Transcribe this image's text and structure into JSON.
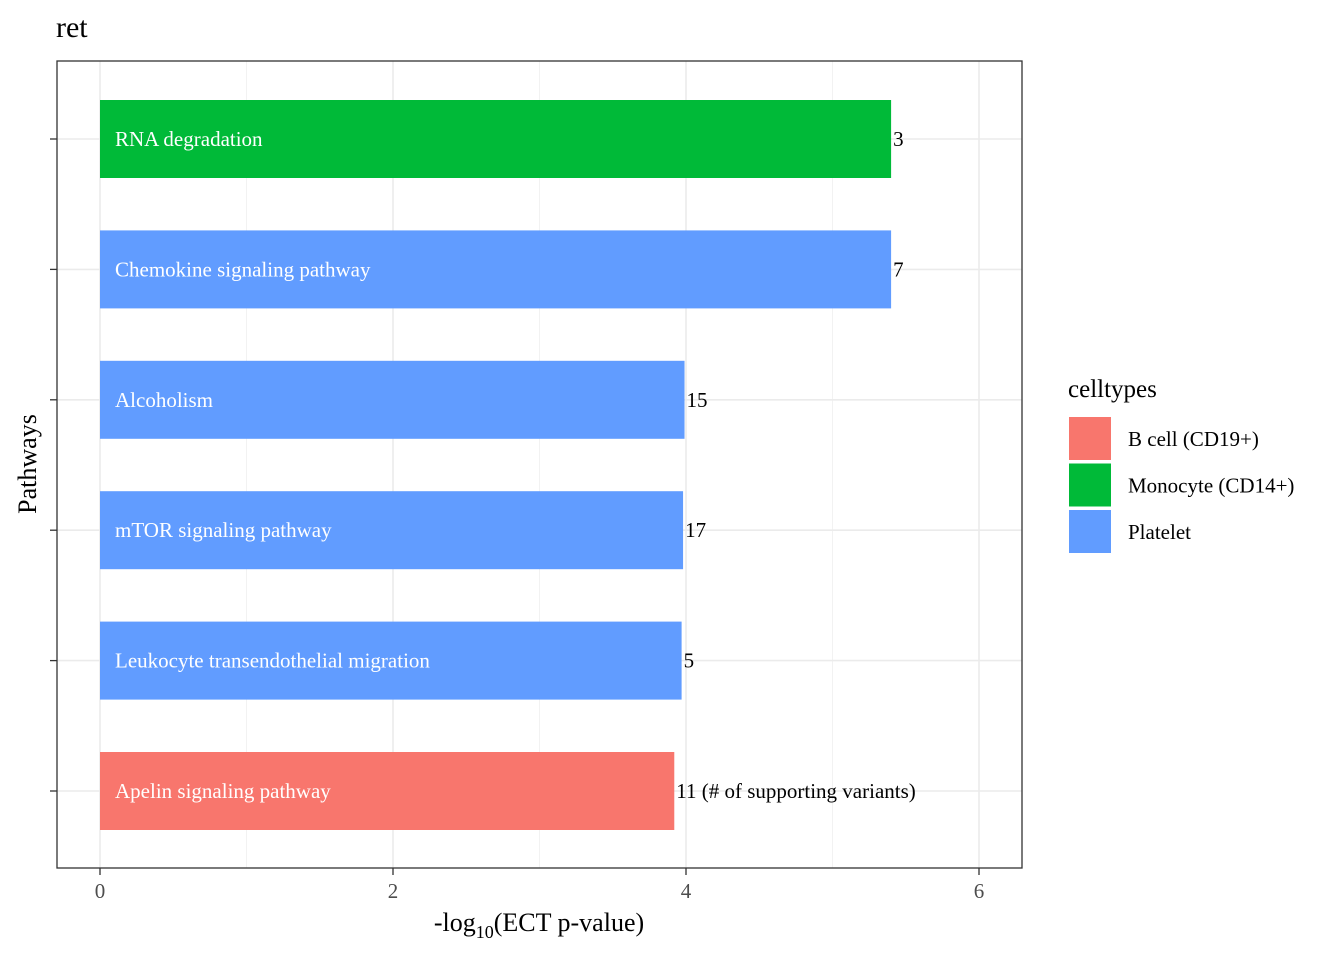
{
  "chart_data": {
    "type": "bar",
    "orientation": "horizontal",
    "title": "ret",
    "xlabel": {
      "prefix": "-log",
      "subscript": "10",
      "suffix": "(ECT p-value)"
    },
    "ylabel": "Pathways",
    "xlim": [
      -0.29,
      6.3
    ],
    "x_ticks": [
      0,
      2,
      4,
      6
    ],
    "grid": true,
    "legend_position": "right",
    "legend_title": "celltypes",
    "legend": [
      {
        "label": "B cell (CD19+)",
        "color": "#F8766D"
      },
      {
        "label": "Monocyte (CD14+)",
        "color": "#00BA38"
      },
      {
        "label": "Platelet",
        "color": "#619CFF"
      }
    ],
    "bars": [
      {
        "pathway": "RNA degradation",
        "value": 5.4,
        "count_label": "3",
        "celltype": "Monocyte (CD14+)",
        "color": "#00BA38"
      },
      {
        "pathway": "Chemokine signaling pathway",
        "value": 5.4,
        "count_label": "7",
        "celltype": "Platelet",
        "color": "#619CFF"
      },
      {
        "pathway": "Alcoholism",
        "value": 3.99,
        "count_label": "15",
        "celltype": "Platelet",
        "color": "#619CFF"
      },
      {
        "pathway": "mTOR signaling pathway",
        "value": 3.98,
        "count_label": "17",
        "celltype": "Platelet",
        "color": "#619CFF"
      },
      {
        "pathway": "Leukocyte transendothelial migration",
        "value": 3.97,
        "count_label": "5",
        "celltype": "Platelet",
        "color": "#619CFF"
      },
      {
        "pathway": "Apelin signaling pathway",
        "value": 3.92,
        "count_label": "11 (# of supporting variants)",
        "celltype": "B cell (CD19+)",
        "color": "#F8766D"
      }
    ]
  }
}
